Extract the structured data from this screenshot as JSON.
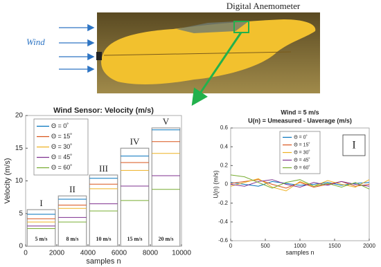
{
  "photo": {
    "wind_label": "Wind",
    "sensor_label": "Digital Anemometer"
  },
  "chart_data": [
    {
      "type": "line",
      "title": "Wind Sensor: Velocity (m/s)",
      "x_label": "samples n",
      "y_label": "Velocity (m/s)",
      "x": [
        100,
        1900,
        2000,
        2100,
        3900,
        4000,
        4100,
        5900,
        6000,
        6100,
        7900,
        8000,
        8100,
        9900
      ],
      "series": [
        {
          "name": "Θ = 0˚",
          "color": "#0072bd",
          "values": [
            4.9,
            4.9,
            null,
            7.2,
            7.2,
            null,
            10.4,
            10.4,
            null,
            13.8,
            13.8,
            null,
            17.8,
            17.8
          ]
        },
        {
          "name": "Θ = 15˚",
          "color": "#d95319",
          "values": [
            4.2,
            4.2,
            null,
            6.3,
            6.3,
            null,
            9.5,
            9.5,
            null,
            12.8,
            12.8,
            null,
            16.0,
            16.0
          ]
        },
        {
          "name": "Θ = 30˚",
          "color": "#edb120",
          "values": [
            3.7,
            3.7,
            null,
            5.8,
            5.8,
            null,
            8.8,
            8.8,
            null,
            11.6,
            11.6,
            null,
            14.2,
            14.2
          ]
        },
        {
          "name": "Θ = 45˚",
          "color": "#7e2f8e",
          "values": [
            3.1,
            3.1,
            null,
            4.4,
            4.4,
            null,
            6.5,
            6.5,
            null,
            9.2,
            9.2,
            null,
            10.8,
            10.8
          ]
        },
        {
          "name": "Θ = 60˚",
          "color": "#77ac30",
          "values": [
            2.7,
            2.7,
            null,
            3.7,
            3.7,
            null,
            5.4,
            5.4,
            null,
            7.0,
            7.0,
            null,
            8.7,
            8.7
          ]
        }
      ],
      "boxes": [
        {
          "label": "I",
          "speed": "5 m/s",
          "x": [
            100,
            1900
          ],
          "top": 5.6
        },
        {
          "label": "II",
          "speed": "8 m/s",
          "x": [
            2100,
            3900
          ],
          "top": 7.7
        },
        {
          "label": "III",
          "speed": "10 m/s",
          "x": [
            4100,
            5900
          ],
          "top": 10.9
        },
        {
          "label": "IV",
          "speed": "15 m/s",
          "x": [
            6100,
            7900
          ],
          "top": 15.0
        },
        {
          "label": "V",
          "speed": "20 m/s",
          "x": [
            8100,
            9900
          ],
          "top": 18.1
        }
      ],
      "xlim": [
        0,
        10000
      ],
      "xticks": [
        0,
        2000,
        4000,
        6000,
        8000,
        10000
      ],
      "ylim": [
        0,
        20
      ],
      "yticks": [
        0,
        5,
        10,
        15,
        20
      ],
      "grid": false,
      "legend": "top-left"
    },
    {
      "type": "line",
      "title": "Wind = 5 m/s",
      "subtitle": "U(n) = Umeasured - Uaverage (m/s)",
      "x_label": "samples n",
      "y_label": "U(n) (m/s)",
      "annotation": "I",
      "x": [
        0,
        200,
        400,
        600,
        800,
        1000,
        1200,
        1400,
        1600,
        1800,
        2000
      ],
      "series": [
        {
          "name": "Θ = 0˚",
          "color": "#0072bd",
          "values": [
            0.02,
            0.0,
            -0.02,
            0.03,
            0.01,
            -0.01,
            0.0,
            0.02,
            -0.01,
            0.01,
            0.02
          ]
        },
        {
          "name": "Θ = 15˚",
          "color": "#d95319",
          "values": [
            0.01,
            0.03,
            0.05,
            0.0,
            -0.04,
            0.02,
            -0.03,
            0.0,
            0.03,
            -0.02,
            0.0
          ]
        },
        {
          "name": "Θ = 30˚",
          "color": "#edb120",
          "values": [
            -0.02,
            0.02,
            0.06,
            -0.03,
            -0.07,
            0.03,
            -0.02,
            0.04,
            0.0,
            -0.03,
            0.05
          ]
        },
        {
          "name": "Θ = 45˚",
          "color": "#7e2f8e",
          "values": [
            0.0,
            -0.02,
            0.03,
            0.05,
            0.0,
            -0.03,
            0.02,
            -0.01,
            0.03,
            0.0,
            -0.02
          ]
        },
        {
          "name": "Θ = 60˚",
          "color": "#77ac30",
          "values": [
            0.1,
            0.08,
            0.02,
            -0.04,
            0.02,
            0.05,
            -0.02,
            0.01,
            -0.03,
            0.02,
            -0.05
          ]
        }
      ],
      "xlim": [
        0,
        2000
      ],
      "xticks": [
        0,
        500,
        1000,
        1500,
        2000
      ],
      "ylim": [
        -0.6,
        0.6
      ],
      "yticks": [
        -0.6,
        -0.4,
        -0.2,
        0,
        0.2,
        0.4,
        0.6
      ],
      "grid": false,
      "legend": "top-center"
    }
  ]
}
